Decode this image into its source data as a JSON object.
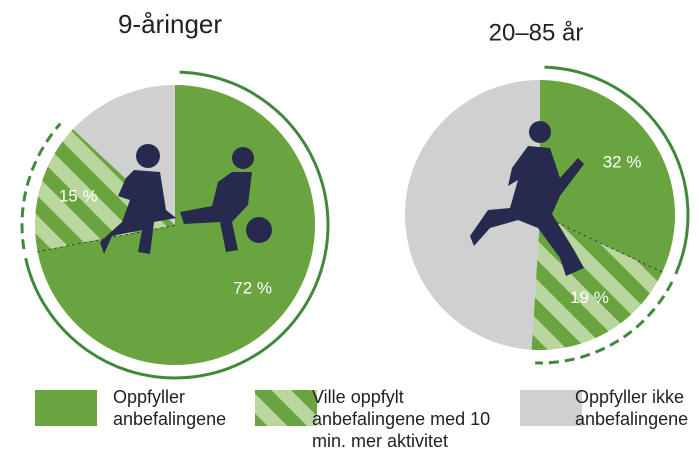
{
  "chart_data": [
    {
      "type": "pie",
      "title": "9-åringer",
      "values": [
        72,
        15,
        13
      ],
      "value_labels": [
        "72 %",
        "15 %",
        null
      ]
    },
    {
      "type": "pie",
      "title": "20–85 år",
      "values": [
        32,
        19,
        49
      ],
      "value_labels": [
        "32 %",
        "19 %",
        null
      ]
    }
  ],
  "legend": {
    "items": [
      {
        "name": "Oppfyller anbefalingene",
        "color": "#6aa43f"
      },
      {
        "name": "Ville oppfylt anbefalingene med 10 min. mer aktivitet",
        "color": "#6aa43f",
        "stripe_color": "#b8d69d"
      },
      {
        "name": "Oppfyller ikke anbefalingene",
        "color": "#d0d0d0"
      }
    ]
  }
}
